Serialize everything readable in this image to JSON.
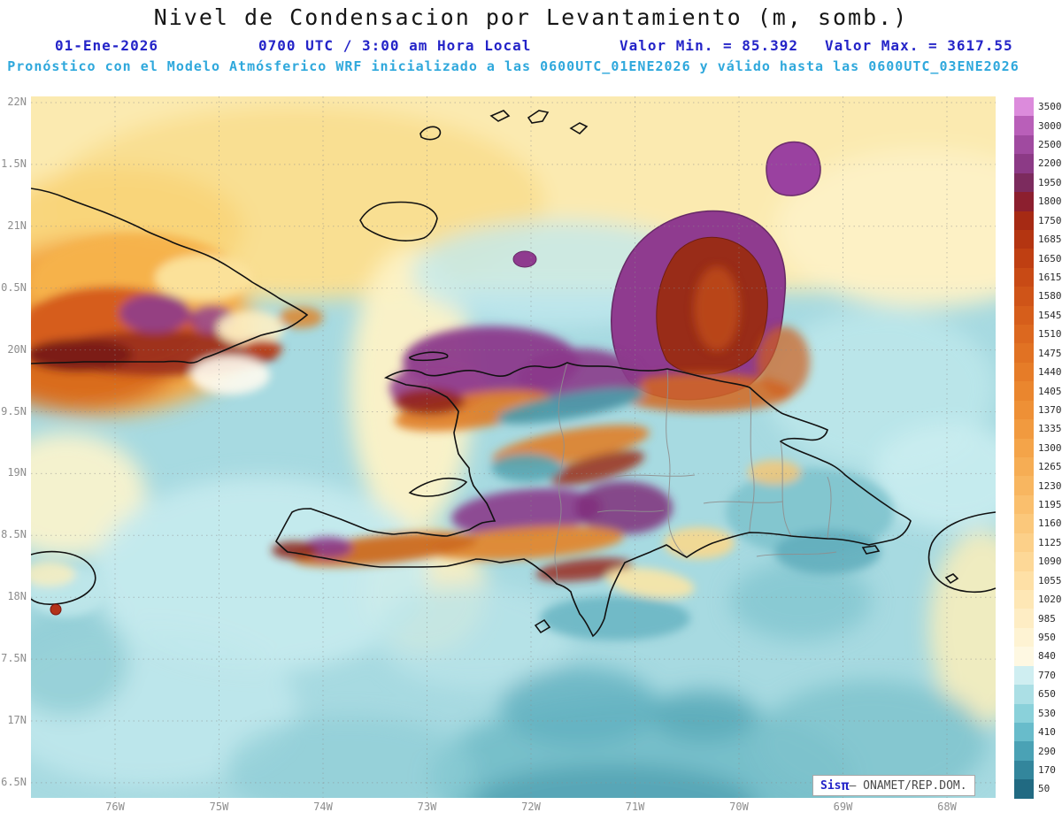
{
  "title": "Nivel de Condensacion por Levantamiento (m, somb.)",
  "header": {
    "date": "01-Ene-2026",
    "time": "0700 UTC / 3:00 am Hora Local",
    "min_label": "Valor Min. = 85.392",
    "max_label": "Valor Max. = 3617.55",
    "forecast_line": "Pronóstico con el Modelo Atmósferico WRF inicializado a las 0600UTC_01ENE2026 y válido hasta las  0600UTC_03ENE2026"
  },
  "map": {
    "variable": "Nivel de Condensacion por Levantamiento",
    "units": "m",
    "value_min": 85.392,
    "value_max": 3617.55,
    "region": "Hispaniola / Caribe"
  },
  "axes": {
    "y_labels": [
      "22N",
      "1.5N",
      "21N",
      "0.5N",
      "20N",
      "9.5N",
      "19N",
      "8.5N",
      "18N",
      "7.5N",
      "17N",
      "6.5N"
    ],
    "x_labels": [
      "76W",
      "75W",
      "74W",
      "73W",
      "72W",
      "71W",
      "70W",
      "69W",
      "68W"
    ]
  },
  "colorbar": {
    "values": [
      "3500",
      "3000",
      "2500",
      "2200",
      "1950",
      "1800",
      "1750",
      "1685",
      "1650",
      "1615",
      "1580",
      "1545",
      "1510",
      "1475",
      "1440",
      "1405",
      "1370",
      "1335",
      "1300",
      "1265",
      "1230",
      "1195",
      "1160",
      "1125",
      "1090",
      "1055",
      "1020",
      "985",
      "950",
      "840",
      "770",
      "650",
      "530",
      "410",
      "290",
      "170",
      "50"
    ],
    "colors": [
      "#dc8bdc",
      "#b95fb9",
      "#a04aa0",
      "#8c3a86",
      "#7c2b5e",
      "#8c1f2f",
      "#a62a14",
      "#b43511",
      "#bf3f12",
      "#c84a15",
      "#cf5418",
      "#d65e1b",
      "#dc681f",
      "#e17223",
      "#e67c28",
      "#ea862e",
      "#ee9036",
      "#f19a3f",
      "#f4a449",
      "#f6ad54",
      "#f8b660",
      "#fabf6d",
      "#fbc87b",
      "#fcd089",
      "#fdd897",
      "#fee0a6",
      "#fee7b5",
      "#feedc4",
      "#fef3d3",
      "#fef8e2",
      "#cfeef1",
      "#abdfe5",
      "#8ad1da",
      "#68bccb",
      "#4aa2b5",
      "#33869c",
      "#216a82"
    ]
  },
  "credit": {
    "sis": "Sis",
    "pi": "π",
    "rest": "– ONAMET/REP.DOM."
  },
  "colors": {
    "title_text": "#161616",
    "header_blue": "#2424c8",
    "header_cyan": "#2fa8dc",
    "axis_gray": "#8d8d8d",
    "sea_base": "#a7dae1"
  }
}
